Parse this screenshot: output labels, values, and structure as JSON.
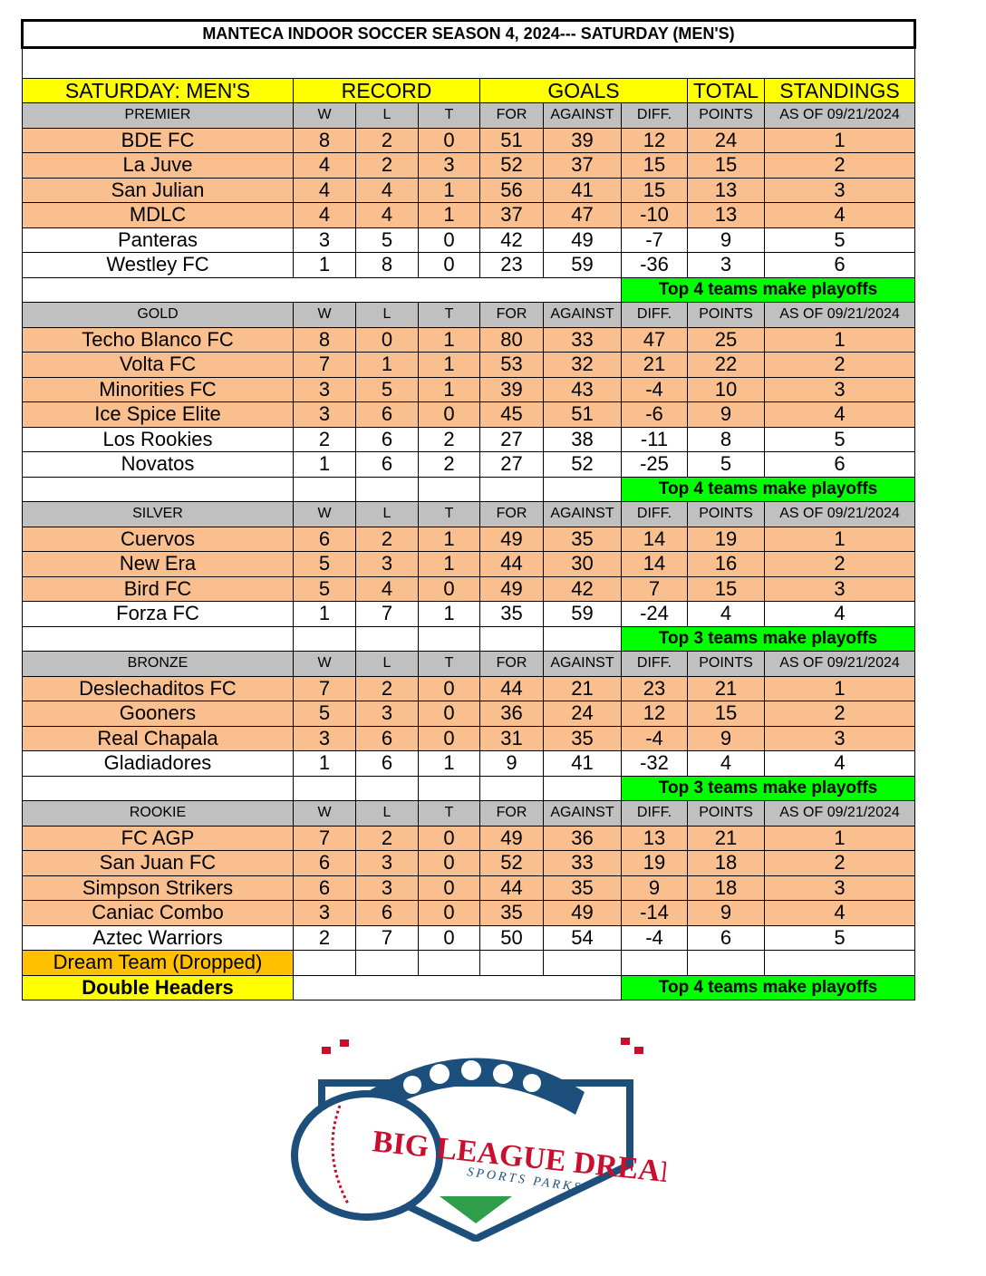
{
  "title": "MANTECA INDOOR SOCCER SEASON 4, 2024--- SATURDAY (MEN'S)",
  "header": {
    "division": "SATURDAY: MEN'S",
    "record": "RECORD",
    "goals": "GOALS",
    "total": "TOTAL",
    "standings": "STANDINGS"
  },
  "columns": [
    "W",
    "L",
    "T",
    "FOR",
    "AGAINST",
    "DIFF.",
    "POINTS",
    "AS OF 09/21/2024"
  ],
  "divisions": [
    {
      "name": "PREMIER",
      "playoff_count": 4,
      "note": "Top 4 teams make playoffs",
      "teams": [
        [
          "BDE FC",
          "8",
          "2",
          "0",
          "51",
          "39",
          "12",
          "24",
          "1"
        ],
        [
          "La Juve",
          "4",
          "2",
          "3",
          "52",
          "37",
          "15",
          "15",
          "2"
        ],
        [
          "San Julian",
          "4",
          "4",
          "1",
          "56",
          "41",
          "15",
          "13",
          "3"
        ],
        [
          "MDLC",
          "4",
          "4",
          "1",
          "37",
          "47",
          "-10",
          "13",
          "4"
        ],
        [
          "Panteras",
          "3",
          "5",
          "0",
          "42",
          "49",
          "-7",
          "9",
          "5"
        ],
        [
          "Westley FC",
          "1",
          "8",
          "0",
          "23",
          "59",
          "-36",
          "3",
          "6"
        ]
      ]
    },
    {
      "name": "GOLD",
      "playoff_count": 4,
      "note": "Top 4 teams make playoffs",
      "teams": [
        [
          "Techo Blanco FC",
          "8",
          "0",
          "1",
          "80",
          "33",
          "47",
          "25",
          "1"
        ],
        [
          "Volta FC",
          "7",
          "1",
          "1",
          "53",
          "32",
          "21",
          "22",
          "2"
        ],
        [
          "Minorities FC",
          "3",
          "5",
          "1",
          "39",
          "43",
          "-4",
          "10",
          "3"
        ],
        [
          "Ice Spice Elite",
          "3",
          "6",
          "0",
          "45",
          "51",
          "-6",
          "9",
          "4"
        ],
        [
          "Los Rookies",
          "2",
          "6",
          "2",
          "27",
          "38",
          "-11",
          "8",
          "5"
        ],
        [
          "Novatos",
          "1",
          "6",
          "2",
          "27",
          "52",
          "-25",
          "5",
          "6"
        ]
      ]
    },
    {
      "name": "SILVER",
      "playoff_count": 3,
      "note": "Top 3 teams make playoffs",
      "teams": [
        [
          "Cuervos",
          "6",
          "2",
          "1",
          "49",
          "35",
          "14",
          "19",
          "1"
        ],
        [
          "New Era",
          "5",
          "3",
          "1",
          "44",
          "30",
          "14",
          "16",
          "2"
        ],
        [
          "Bird FC",
          "5",
          "4",
          "0",
          "49",
          "42",
          "7",
          "15",
          "3"
        ],
        [
          "Forza FC",
          "1",
          "7",
          "1",
          "35",
          "59",
          "-24",
          "4",
          "4"
        ]
      ]
    },
    {
      "name": "BRONZE",
      "playoff_count": 3,
      "note": "Top 3 teams make playoffs",
      "teams": [
        [
          "Deslechaditos FC",
          "7",
          "2",
          "0",
          "44",
          "21",
          "23",
          "21",
          "1"
        ],
        [
          "Gooners",
          "5",
          "3",
          "0",
          "36",
          "24",
          "12",
          "15",
          "2"
        ],
        [
          "Real Chapala",
          "3",
          "6",
          "0",
          "31",
          "35",
          "-4",
          "9",
          "3"
        ],
        [
          "Gladiadores",
          "1",
          "6",
          "1",
          "9",
          "41",
          "-32",
          "4",
          "4"
        ]
      ]
    },
    {
      "name": "ROOKIE",
      "playoff_count": 4,
      "note": "Top 4 teams make playoffs",
      "teams": [
        [
          "FC AGP",
          "7",
          "2",
          "0",
          "49",
          "36",
          "13",
          "21",
          "1"
        ],
        [
          "San Juan FC",
          "6",
          "3",
          "0",
          "52",
          "33",
          "19",
          "18",
          "2"
        ],
        [
          "Simpson Strikers",
          "6",
          "3",
          "0",
          "44",
          "35",
          "9",
          "18",
          "3"
        ],
        [
          "Caniac Combo",
          "3",
          "6",
          "0",
          "35",
          "49",
          "-14",
          "9",
          "4"
        ],
        [
          "Aztec Warriors",
          "2",
          "7",
          "0",
          "50",
          "54",
          "-4",
          "6",
          "5"
        ]
      ]
    }
  ],
  "dropped": "Dream Team (Dropped)",
  "double_headers": "Double Headers",
  "logo": {
    "text": "BIG LEAGUE DREAMS",
    "sub": "SPORTS PARKS"
  },
  "colors": {
    "playoff_row": "#f9bf8f",
    "header": "#ffff00",
    "subheader": "#c0c0c0",
    "note": "#00ff00",
    "dropped": "#ffc000"
  }
}
